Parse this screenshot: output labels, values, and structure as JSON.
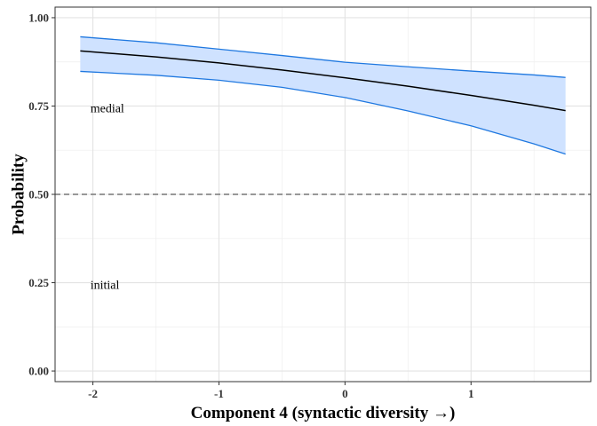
{
  "chart_data": {
    "type": "line",
    "title": "",
    "xlabel": "Component 4 (syntactic diversity →)",
    "ylabel": "Probability",
    "xlim": [
      -2.3,
      1.95
    ],
    "ylim": [
      -0.03,
      1.03
    ],
    "x_ticks": [
      -2,
      -1,
      0,
      1
    ],
    "x_tick_labels": [
      "-2",
      "-1",
      "0",
      "1"
    ],
    "y_ticks": [
      0,
      0.25,
      0.5,
      0.75,
      1.0
    ],
    "y_tick_labels": [
      "0.00",
      "0.25",
      "0.50",
      "0.75",
      "1.00"
    ],
    "grid": true,
    "reference_line": {
      "y": 0.5,
      "style": "dashed"
    },
    "annotations": [
      {
        "text": "medial",
        "x": -2.02,
        "y": 0.745
      },
      {
        "text": "initial",
        "x": -2.02,
        "y": 0.245
      }
    ],
    "series": [
      {
        "x": [
          -2.1,
          -1.5,
          -1.0,
          -0.5,
          0.0,
          0.5,
          1.0,
          1.5,
          1.75
        ],
        "values": [
          0.906,
          0.889,
          0.872,
          0.852,
          0.83,
          0.806,
          0.78,
          0.752,
          0.737
        ],
        "lower": [
          0.848,
          0.837,
          0.823,
          0.803,
          0.774,
          0.736,
          0.694,
          0.643,
          0.614
        ],
        "upper": [
          0.946,
          0.929,
          0.911,
          0.893,
          0.874,
          0.861,
          0.849,
          0.838,
          0.831
        ],
        "line_color": "#000000",
        "band_color": "#cfe2ff",
        "band_edge_color": "#1f78e0"
      }
    ]
  }
}
